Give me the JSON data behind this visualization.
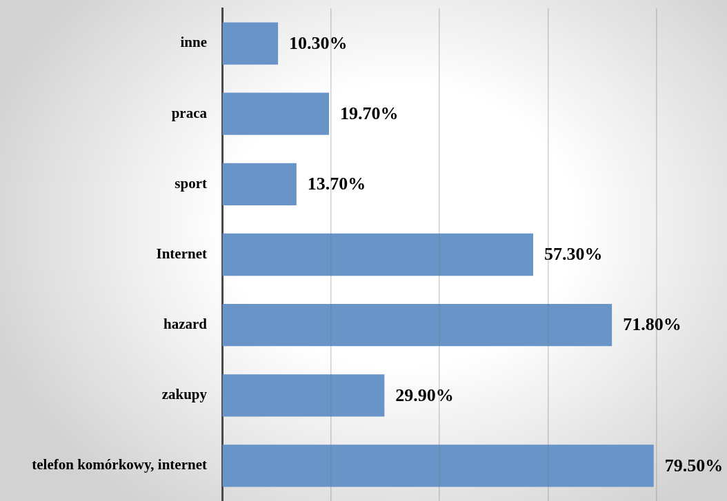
{
  "chart_data": {
    "type": "bar",
    "orientation": "horizontal",
    "categories": [
      "inne",
      "praca",
      "sport",
      "Internet",
      "hazard",
      "zakupy",
      "telefon komórkowy, internet"
    ],
    "values": [
      10.3,
      19.7,
      13.7,
      57.3,
      71.8,
      29.9,
      79.5
    ],
    "value_labels": [
      "10.30%",
      "19.70%",
      "13.70%",
      "57.30%",
      "71.80%",
      "29.90%",
      "79.50%"
    ],
    "color": "#6894c8",
    "xlim": [
      0,
      93
    ],
    "xticks": [
      {
        "value": 0,
        "label": null
      },
      {
        "value": 20,
        "label": null
      },
      {
        "value": 40,
        "label": null
      },
      {
        "value": 60,
        "label": null
      },
      {
        "value": 80,
        "label": null
      }
    ],
    "grid": "x",
    "tick_labels": "y"
  }
}
